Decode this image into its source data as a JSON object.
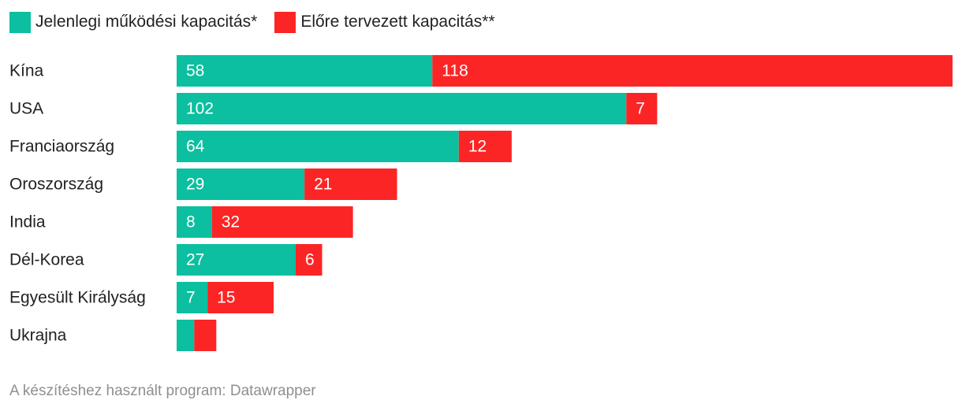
{
  "chart_data": {
    "type": "bar",
    "orientation": "horizontal",
    "stacked": true,
    "categories": [
      "Kína",
      "USA",
      "Franciaország",
      "Oroszország",
      "India",
      "Dél-Korea",
      "Egyesült Királyság",
      "Ukrajna"
    ],
    "series": [
      {
        "name": "Jelenlegi működési kapacitás*",
        "color": "#0bbfa0",
        "values": [
          58,
          102,
          64,
          29,
          8,
          27,
          7,
          4
        ],
        "labels": [
          "58",
          "102",
          "64",
          "29",
          "8",
          "27",
          "7",
          ""
        ]
      },
      {
        "name": "Előre tervezett kapacitás**",
        "color": "#fc2525",
        "values": [
          118,
          7,
          12,
          21,
          32,
          6,
          15,
          5
        ],
        "labels": [
          "118",
          "7",
          "12",
          "21",
          "32",
          "6",
          "15",
          ""
        ]
      }
    ],
    "xlim": [
      0,
      176
    ],
    "grid": false,
    "legend": "top-left"
  },
  "footer": {
    "credit": "A készítéshez használt program: Datawrapper"
  }
}
